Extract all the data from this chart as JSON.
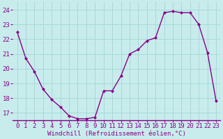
{
  "x": [
    0,
    1,
    2,
    3,
    4,
    5,
    6,
    7,
    8,
    9,
    10,
    11,
    12,
    13,
    14,
    15,
    16,
    17,
    18,
    19,
    20,
    21,
    22,
    23
  ],
  "y": [
    22.5,
    20.7,
    19.8,
    18.6,
    17.9,
    17.4,
    16.8,
    16.6,
    16.6,
    16.7,
    18.5,
    18.5,
    19.5,
    21.0,
    21.3,
    21.9,
    22.1,
    23.8,
    23.9,
    23.8,
    23.8,
    23.0,
    21.1,
    17.8
  ],
  "line_color": "#880088",
  "marker": "D",
  "marker_size": 2.0,
  "bg_color": "#c8ecec",
  "grid_color": "#a8d8d8",
  "xlabel": "Windchill (Refroidissement éolien,°C)",
  "xlim": [
    -0.5,
    23.5
  ],
  "ylim": [
    16.5,
    24.5
  ],
  "yticks": [
    17,
    18,
    19,
    20,
    21,
    22,
    23,
    24
  ],
  "xticks": [
    0,
    1,
    2,
    3,
    4,
    5,
    6,
    7,
    8,
    9,
    10,
    11,
    12,
    13,
    14,
    15,
    16,
    17,
    18,
    19,
    20,
    21,
    22,
    23
  ],
  "label_color": "#880088",
  "axis_color": "#880088",
  "xlabel_fontsize": 6.5,
  "tick_fontsize": 6.5,
  "line_width": 1.0,
  "fig_width": 3.2,
  "fig_height": 2.0,
  "dpi": 100
}
